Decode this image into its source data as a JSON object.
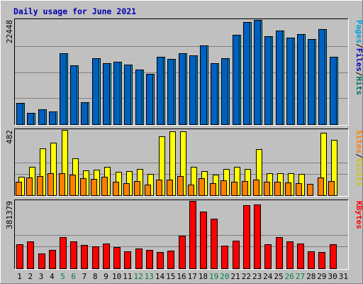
{
  "chart_data": {
    "type": "bar",
    "title": "Daily usage for June 2021",
    "categories": [
      "1",
      "2",
      "3",
      "4",
      "5",
      "6",
      "7",
      "8",
      "9",
      "10",
      "11",
      "12",
      "13",
      "14",
      "15",
      "16",
      "17",
      "18",
      "19",
      "20",
      "21",
      "22",
      "23",
      "24",
      "25",
      "26",
      "27",
      "28",
      "29",
      "30",
      "31"
    ],
    "weekend_days": [
      5,
      6,
      12,
      13,
      19,
      20,
      26,
      27
    ],
    "panels": [
      {
        "name": "pages-files-hits",
        "ymax_label": "22448",
        "ymax": 22448,
        "right_labels": [
          {
            "text": "Pages",
            "color": "#00a0e0"
          },
          {
            "text": "/",
            "color": "#000000"
          },
          {
            "text": "Files",
            "color": "#0000c0"
          },
          {
            "text": "/",
            "color": "#000000"
          },
          {
            "text": "Hits",
            "color": "#007060"
          }
        ],
        "series": [
          {
            "name": "Pages",
            "color": "#00c0ff",
            "values": [
              4550,
              2400,
              3250,
              2750,
              15200,
              12600,
              4700,
              14200,
              13200,
              13400,
              12900,
              11800,
              10900,
              14500,
              14100,
              15300,
              14800,
              16900,
              13200,
              14200,
              19200,
              22000,
              22448,
              19000,
              20200,
              18600,
              19400,
              18400,
              20400,
              14500,
              0
            ]
          },
          {
            "name": "Files",
            "color": "#0060c0",
            "values": [
              4550,
              2400,
              3250,
              2750,
              15200,
              12600,
              4700,
              14200,
              13200,
              13400,
              12900,
              11800,
              10900,
              14500,
              14100,
              15300,
              14800,
              16900,
              13200,
              14200,
              19200,
              22000,
              22448,
              19000,
              20200,
              18600,
              19400,
              18400,
              20400,
              14500,
              0
            ]
          }
        ]
      },
      {
        "name": "visits-sites",
        "ymax_label": "482",
        "ymax": 482,
        "right_labels": [
          {
            "text": "Sites",
            "color": "#ff8000"
          },
          {
            "text": "/",
            "color": "#000000"
          },
          {
            "text": "Visits",
            "color": "#c8c800"
          }
        ],
        "series": [
          {
            "name": "Visits",
            "color": "#ffff00",
            "values": [
              135,
              210,
              345,
              390,
              480,
              270,
              185,
              190,
              210,
              175,
              180,
              195,
              155,
              435,
              470,
              470,
              210,
              180,
              150,
              195,
              210,
              195,
              340,
              165,
              160,
              160,
              155,
              0,
              460,
              410,
              0
            ]
          },
          {
            "name": "Sites",
            "color": "#ff8000",
            "values": [
              100,
              130,
              140,
              165,
              160,
              150,
              125,
              120,
              135,
              100,
              90,
              105,
              80,
              115,
              115,
              140,
              80,
              125,
              90,
              110,
              100,
              105,
              115,
              100,
              100,
              95,
              90,
              85,
              130,
              105,
              0
            ]
          }
        ]
      },
      {
        "name": "kbytes",
        "ymax_label": "381379",
        "ymax": 381379,
        "right_labels": [
          {
            "text": "KBytes",
            "color": "#ff0000"
          }
        ],
        "series": [
          {
            "name": "KBytes",
            "color": "#ff0000",
            "values": [
              136000,
              154000,
              83000,
              103000,
              177000,
              154000,
              131000,
              126000,
              139000,
              122000,
              96000,
              114000,
              105000,
              94000,
              100000,
              186000,
              381379,
              322000,
              281000,
              127000,
              158000,
              356000,
              360000,
              137000,
              175000,
              152000,
              141000,
              97000,
              93000,
              137000,
              0
            ]
          }
        ]
      }
    ]
  }
}
